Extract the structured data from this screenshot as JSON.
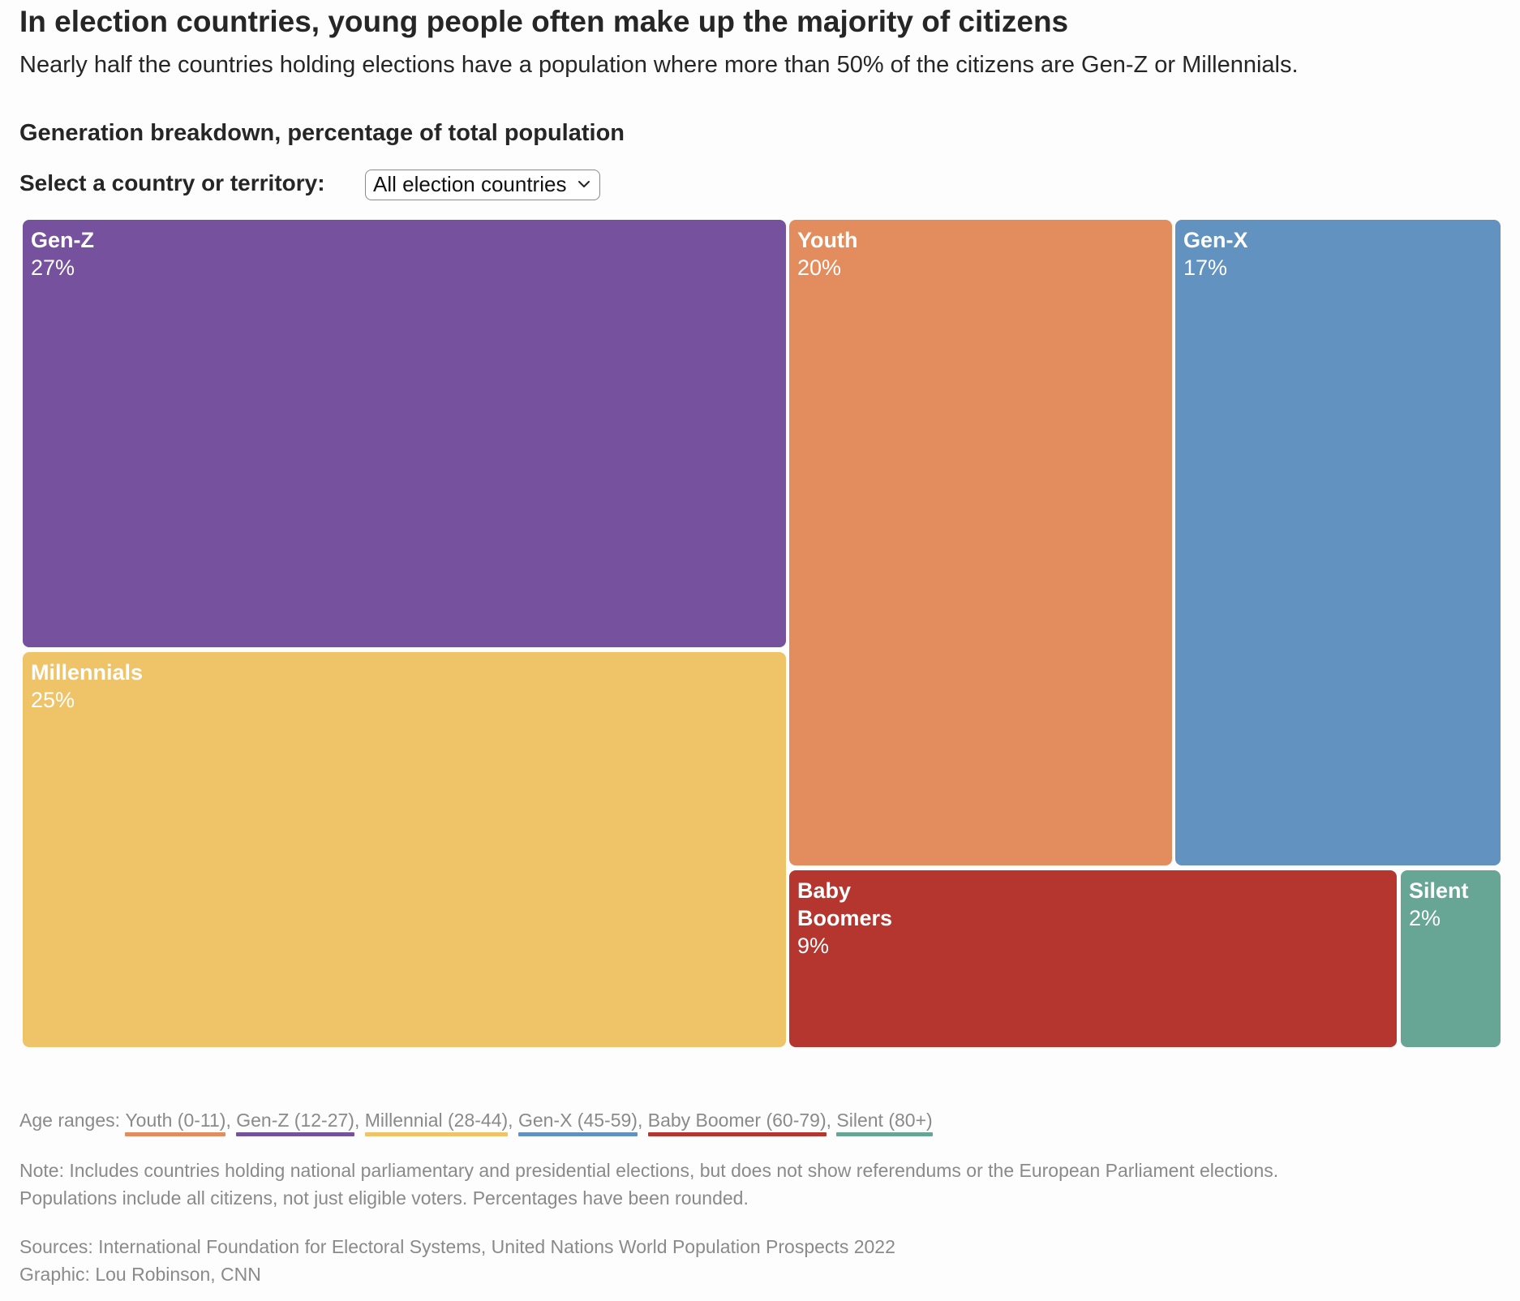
{
  "header": {
    "title": "In election countries, young people often make up the majority of citizens",
    "subtitle": "Nearly half the countries holding elections have a population where more than 50% of the citizens are Gen-Z or Millennials.",
    "chart_heading": "Generation breakdown, percentage of total population"
  },
  "selector": {
    "label": "Select a country or territory:",
    "value": "All election countries",
    "icon": "chevron-down-icon"
  },
  "chart_data": {
    "type": "treemap",
    "title": "Generation breakdown, percentage of total population",
    "unit": "%",
    "nodes": [
      {
        "name": "Gen-Z",
        "value": 27,
        "label": "27%",
        "color": "#76519e"
      },
      {
        "name": "Millennials",
        "value": 25,
        "label": "25%",
        "color": "#efc368"
      },
      {
        "name": "Youth",
        "value": 20,
        "label": "20%",
        "color": "#e38d5e"
      },
      {
        "name": "Gen-X",
        "value": 17,
        "label": "17%",
        "color": "#6192c0"
      },
      {
        "name": "Baby Boomers",
        "value": 9,
        "label": "9%",
        "color": "#b5352f"
      },
      {
        "name": "Silent",
        "value": 2,
        "label": "2%",
        "color": "#67a695"
      }
    ]
  },
  "footer": {
    "age_ranges_prefix": "Age ranges:",
    "age_ranges": [
      {
        "text": "Youth (0-11)",
        "sep": ",",
        "color": "#e38d5e"
      },
      {
        "text": "Gen-Z (12-27)",
        "sep": ",",
        "color": "#76519e"
      },
      {
        "text": "Millennial (28-44)",
        "sep": ",",
        "color": "#efc368"
      },
      {
        "text": "Gen-X (45-59)",
        "sep": ",",
        "color": "#6192c0"
      },
      {
        "text": "Baby Boomer (60-79)",
        "sep": ",",
        "color": "#b5352f"
      },
      {
        "text": "Silent (80+)",
        "sep": "",
        "color": "#67a695"
      }
    ],
    "note_line1": "Note: Includes countries holding national parliamentary and presidential elections, but does not show referendums or the European Parliament elections.",
    "note_line2": "Populations include all citizens, not just eligible voters. Percentages have been rounded.",
    "sources": "Sources: International Foundation for Electoral Systems, United Nations World Population Prospects 2022",
    "credit": "Graphic: Lou Robinson, CNN"
  }
}
